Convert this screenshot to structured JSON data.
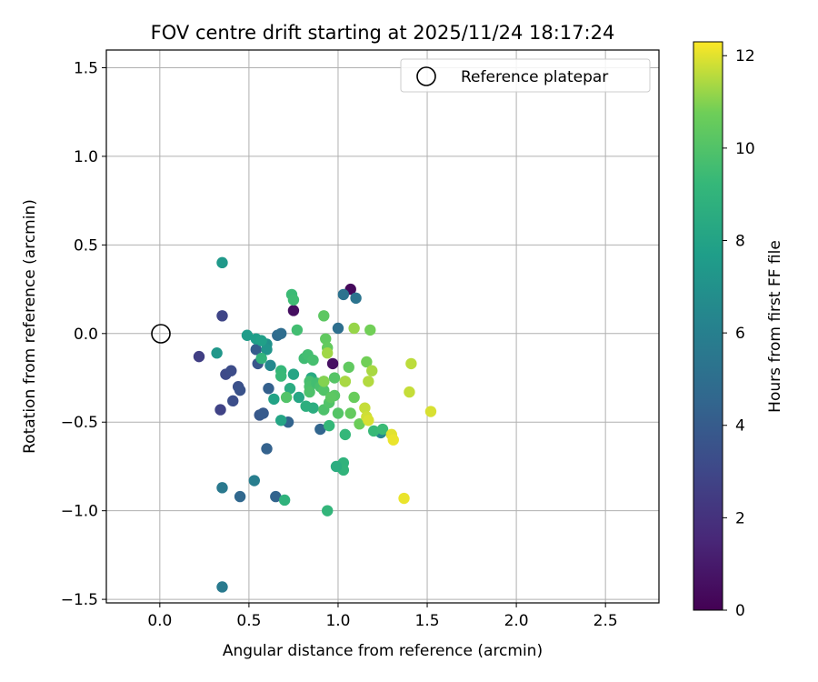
{
  "chart_data": {
    "type": "scatter",
    "title": "FOV centre drift starting at 2025/11/24 18:17:24",
    "xlabel": "Angular distance from reference (arcmin)",
    "ylabel": "Rotation from reference (arcmin)",
    "xlim": [
      -0.3,
      2.8
    ],
    "ylim": [
      -1.52,
      1.6
    ],
    "xticks": [
      0.0,
      0.5,
      1.0,
      1.5,
      2.0,
      2.5
    ],
    "xtick_labels": [
      "0.0",
      "0.5",
      "1.0",
      "1.5",
      "2.0",
      "2.5"
    ],
    "yticks": [
      -1.5,
      -1.0,
      -0.5,
      0.0,
      0.5,
      1.0,
      1.5
    ],
    "ytick_labels": [
      "−1.5",
      "−1.0",
      "−0.5",
      "0.0",
      "0.5",
      "1.0",
      "1.5"
    ],
    "grid": true,
    "legend": {
      "position": "top-right",
      "entries": [
        {
          "label": "Reference platepar",
          "marker": "open-circle"
        }
      ]
    },
    "reference_point": {
      "x": 0.0,
      "y": 0.0,
      "label": "Reference platepar"
    },
    "colorbar": {
      "label": "Hours from first FF file",
      "range": [
        0,
        12.3
      ],
      "ticks": [
        0,
        2,
        4,
        6,
        8,
        10,
        12
      ],
      "tick_labels": [
        "0",
        "2",
        "4",
        "6",
        "8",
        "10",
        "12"
      ],
      "colormap": "viridis"
    },
    "points": [
      {
        "x": 1.07,
        "y": 0.25,
        "t": 0.3
      },
      {
        "x": 0.75,
        "y": 0.13,
        "t": 0.5
      },
      {
        "x": 0.97,
        "y": -0.17,
        "t": 0.6
      },
      {
        "x": 0.22,
        "y": -0.13,
        "t": 2.6
      },
      {
        "x": 0.35,
        "y": 0.1,
        "t": 2.9
      },
      {
        "x": 0.37,
        "y": -0.23,
        "t": 3.1
      },
      {
        "x": 0.4,
        "y": -0.21,
        "t": 3.2
      },
      {
        "x": 0.34,
        "y": -0.43,
        "t": 2.8
      },
      {
        "x": 0.41,
        "y": -0.38,
        "t": 3.3
      },
      {
        "x": 0.44,
        "y": -0.3,
        "t": 3.4
      },
      {
        "x": 0.45,
        "y": -0.32,
        "t": 3.5
      },
      {
        "x": 0.55,
        "y": -0.17,
        "t": 3.7
      },
      {
        "x": 0.56,
        "y": -0.46,
        "t": 3.8
      },
      {
        "x": 0.58,
        "y": -0.45,
        "t": 3.9
      },
      {
        "x": 0.6,
        "y": -0.65,
        "t": 4.3
      },
      {
        "x": 0.54,
        "y": -0.09,
        "t": 4.0
      },
      {
        "x": 0.61,
        "y": -0.31,
        "t": 4.2
      },
      {
        "x": 0.45,
        "y": -0.92,
        "t": 4.6
      },
      {
        "x": 0.65,
        "y": -0.92,
        "t": 4.4
      },
      {
        "x": 0.72,
        "y": -0.5,
        "t": 4.4
      },
      {
        "x": 0.9,
        "y": -0.54,
        "t": 4.5
      },
      {
        "x": 0.66,
        "y": -0.01,
        "t": 4.8
      },
      {
        "x": 0.68,
        "y": 0.0,
        "t": 4.9
      },
      {
        "x": 1.0,
        "y": 0.03,
        "t": 5.0
      },
      {
        "x": 1.03,
        "y": 0.22,
        "t": 5.2
      },
      {
        "x": 1.1,
        "y": 0.2,
        "t": 5.3
      },
      {
        "x": 0.35,
        "y": -0.87,
        "t": 5.6
      },
      {
        "x": 0.35,
        "y": -1.43,
        "t": 5.7
      },
      {
        "x": 0.53,
        "y": -0.83,
        "t": 5.9
      },
      {
        "x": 1.24,
        "y": -0.56,
        "t": 6.3
      },
      {
        "x": 0.62,
        "y": -0.18,
        "t": 6.5
      },
      {
        "x": 0.6,
        "y": -0.06,
        "t": 7.0
      },
      {
        "x": 0.6,
        "y": -0.09,
        "t": 7.2
      },
      {
        "x": 0.32,
        "y": -0.11,
        "t": 7.3
      },
      {
        "x": 0.35,
        "y": 0.4,
        "t": 7.4
      },
      {
        "x": 0.49,
        "y": -0.01,
        "t": 7.6
      },
      {
        "x": 0.54,
        "y": -0.03,
        "t": 7.7
      },
      {
        "x": 0.57,
        "y": -0.04,
        "t": 7.8
      },
      {
        "x": 0.64,
        "y": -0.37,
        "t": 8.0
      },
      {
        "x": 0.68,
        "y": -0.49,
        "t": 8.1
      },
      {
        "x": 0.75,
        "y": -0.23,
        "t": 8.1
      },
      {
        "x": 0.78,
        "y": -0.36,
        "t": 8.2
      },
      {
        "x": 0.73,
        "y": -0.31,
        "t": 8.5
      },
      {
        "x": 0.85,
        "y": -0.25,
        "t": 8.4
      },
      {
        "x": 0.86,
        "y": -0.42,
        "t": 8.6
      },
      {
        "x": 0.82,
        "y": -0.41,
        "t": 8.7
      },
      {
        "x": 1.01,
        "y": -0.75,
        "t": 8.8
      },
      {
        "x": 1.03,
        "y": -0.73,
        "t": 8.9
      },
      {
        "x": 1.03,
        "y": -0.77,
        "t": 9.0
      },
      {
        "x": 0.99,
        "y": -0.75,
        "t": 8.6
      },
      {
        "x": 0.7,
        "y": -0.94,
        "t": 8.9
      },
      {
        "x": 0.94,
        "y": -1.0,
        "t": 9.1
      },
      {
        "x": 0.95,
        "y": -0.52,
        "t": 9.2
      },
      {
        "x": 1.04,
        "y": -0.57,
        "t": 9.2
      },
      {
        "x": 1.2,
        "y": -0.55,
        "t": 9.3
      },
      {
        "x": 1.25,
        "y": -0.54,
        "t": 9.4
      },
      {
        "x": 0.57,
        "y": -0.14,
        "t": 9.0
      },
      {
        "x": 0.68,
        "y": -0.21,
        "t": 9.2
      },
      {
        "x": 0.68,
        "y": -0.24,
        "t": 9.3
      },
      {
        "x": 0.74,
        "y": 0.22,
        "t": 9.4
      },
      {
        "x": 0.75,
        "y": 0.19,
        "t": 9.5
      },
      {
        "x": 0.77,
        "y": 0.02,
        "t": 9.6
      },
      {
        "x": 0.81,
        "y": -0.14,
        "t": 9.5
      },
      {
        "x": 0.83,
        "y": -0.12,
        "t": 9.6
      },
      {
        "x": 0.86,
        "y": -0.15,
        "t": 9.7
      },
      {
        "x": 0.84,
        "y": -0.27,
        "t": 9.7
      },
      {
        "x": 0.84,
        "y": -0.3,
        "t": 9.8
      },
      {
        "x": 0.84,
        "y": -0.33,
        "t": 9.9
      },
      {
        "x": 0.88,
        "y": -0.28,
        "t": 9.6
      },
      {
        "x": 0.9,
        "y": -0.3,
        "t": 9.8
      },
      {
        "x": 0.92,
        "y": -0.27,
        "t": 9.9
      },
      {
        "x": 0.92,
        "y": -0.32,
        "t": 10.0
      },
      {
        "x": 0.92,
        "y": -0.43,
        "t": 9.9
      },
      {
        "x": 0.95,
        "y": -0.39,
        "t": 10.0
      },
      {
        "x": 0.98,
        "y": -0.25,
        "t": 10.1
      },
      {
        "x": 0.98,
        "y": -0.35,
        "t": 10.2
      },
      {
        "x": 1.0,
        "y": -0.45,
        "t": 10.1
      },
      {
        "x": 0.92,
        "y": 0.1,
        "t": 10.3
      },
      {
        "x": 0.93,
        "y": -0.03,
        "t": 10.4
      },
      {
        "x": 0.94,
        "y": -0.08,
        "t": 10.5
      },
      {
        "x": 0.96,
        "y": -0.36,
        "t": 10.3
      },
      {
        "x": 1.04,
        "y": -0.27,
        "t": 10.5
      },
      {
        "x": 1.06,
        "y": -0.19,
        "t": 10.4
      },
      {
        "x": 1.07,
        "y": -0.45,
        "t": 10.5
      },
      {
        "x": 1.09,
        "y": -0.36,
        "t": 10.6
      },
      {
        "x": 1.12,
        "y": -0.51,
        "t": 10.7
      },
      {
        "x": 1.16,
        "y": -0.16,
        "t": 10.8
      },
      {
        "x": 1.18,
        "y": 0.02,
        "t": 10.8
      },
      {
        "x": 0.71,
        "y": -0.36,
        "t": 10.0
      },
      {
        "x": 0.92,
        "y": -0.27,
        "t": 11.0
      },
      {
        "x": 0.94,
        "y": -0.11,
        "t": 11.3
      },
      {
        "x": 1.09,
        "y": 0.03,
        "t": 11.2
      },
      {
        "x": 1.04,
        "y": -0.27,
        "t": 11.4
      },
      {
        "x": 1.17,
        "y": -0.27,
        "t": 11.5
      },
      {
        "x": 1.19,
        "y": -0.21,
        "t": 11.4
      },
      {
        "x": 1.15,
        "y": -0.42,
        "t": 11.7
      },
      {
        "x": 1.16,
        "y": -0.47,
        "t": 11.8
      },
      {
        "x": 1.17,
        "y": -0.49,
        "t": 11.9
      },
      {
        "x": 1.41,
        "y": -0.17,
        "t": 11.6
      },
      {
        "x": 1.4,
        "y": -0.33,
        "t": 11.7
      },
      {
        "x": 1.3,
        "y": -0.57,
        "t": 12.0
      },
      {
        "x": 1.31,
        "y": -0.6,
        "t": 12.1
      },
      {
        "x": 1.52,
        "y": -0.44,
        "t": 11.9
      },
      {
        "x": 1.37,
        "y": -0.93,
        "t": 12.1
      }
    ]
  }
}
